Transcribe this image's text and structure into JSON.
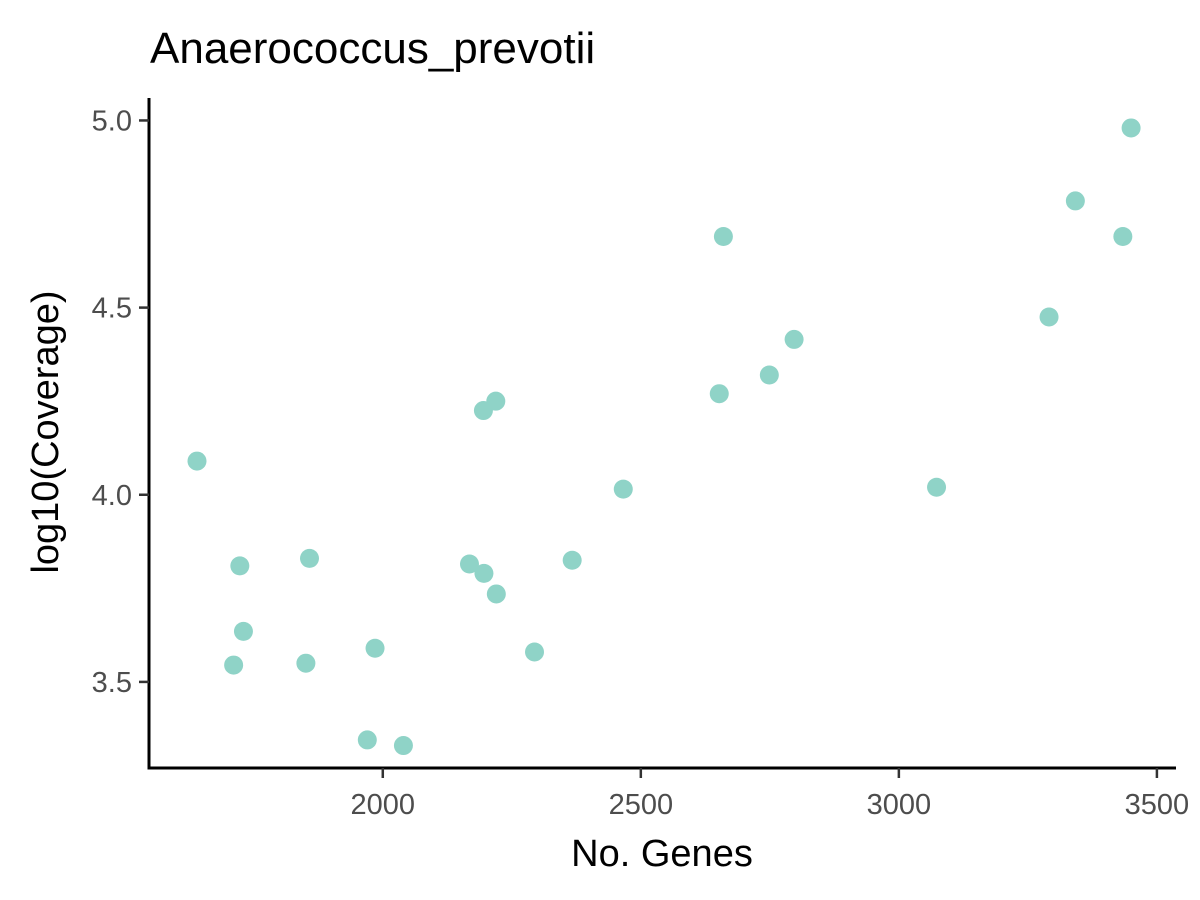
{
  "chart_data": {
    "type": "scatter",
    "title": "Anaerococcus_prevotii",
    "xlabel": "No. Genes",
    "ylabel": "log10(Coverage)",
    "xlim": [
      1547,
      3537
    ],
    "ylim": [
      3.27,
      5.06
    ],
    "xticks": [
      2000,
      2500,
      3000,
      3500
    ],
    "xtick_labels": [
      "2000",
      "2500",
      "3000",
      "3500"
    ],
    "yticks": [
      3.5,
      4.0,
      4.5,
      5.0
    ],
    "ytick_labels": [
      "3.5",
      "4.0",
      "4.5",
      "5.0"
    ],
    "grid": false,
    "point_color": "#8fd3c7",
    "axis_color": "#000000",
    "tick_label_color": "#4d4d4d",
    "points": [
      {
        "x": 1640,
        "y": 4.09
      },
      {
        "x": 1711,
        "y": 3.545
      },
      {
        "x": 1723,
        "y": 3.81
      },
      {
        "x": 1730,
        "y": 3.635
      },
      {
        "x": 1851,
        "y": 3.55
      },
      {
        "x": 1858,
        "y": 3.83
      },
      {
        "x": 1970,
        "y": 3.345
      },
      {
        "x": 1985,
        "y": 3.59
      },
      {
        "x": 2040,
        "y": 3.33
      },
      {
        "x": 2168,
        "y": 3.815
      },
      {
        "x": 2195,
        "y": 4.225
      },
      {
        "x": 2196,
        "y": 3.79
      },
      {
        "x": 2219,
        "y": 4.25
      },
      {
        "x": 2220,
        "y": 3.735
      },
      {
        "x": 2294,
        "y": 3.58
      },
      {
        "x": 2367,
        "y": 3.825
      },
      {
        "x": 2466,
        "y": 4.015
      },
      {
        "x": 2652,
        "y": 4.27
      },
      {
        "x": 2660,
        "y": 4.69
      },
      {
        "x": 2749,
        "y": 4.32
      },
      {
        "x": 2797,
        "y": 4.415
      },
      {
        "x": 3073,
        "y": 4.02
      },
      {
        "x": 3291,
        "y": 4.475
      },
      {
        "x": 3342,
        "y": 4.785
      },
      {
        "x": 3434,
        "y": 4.69
      },
      {
        "x": 3450,
        "y": 4.98
      }
    ]
  }
}
